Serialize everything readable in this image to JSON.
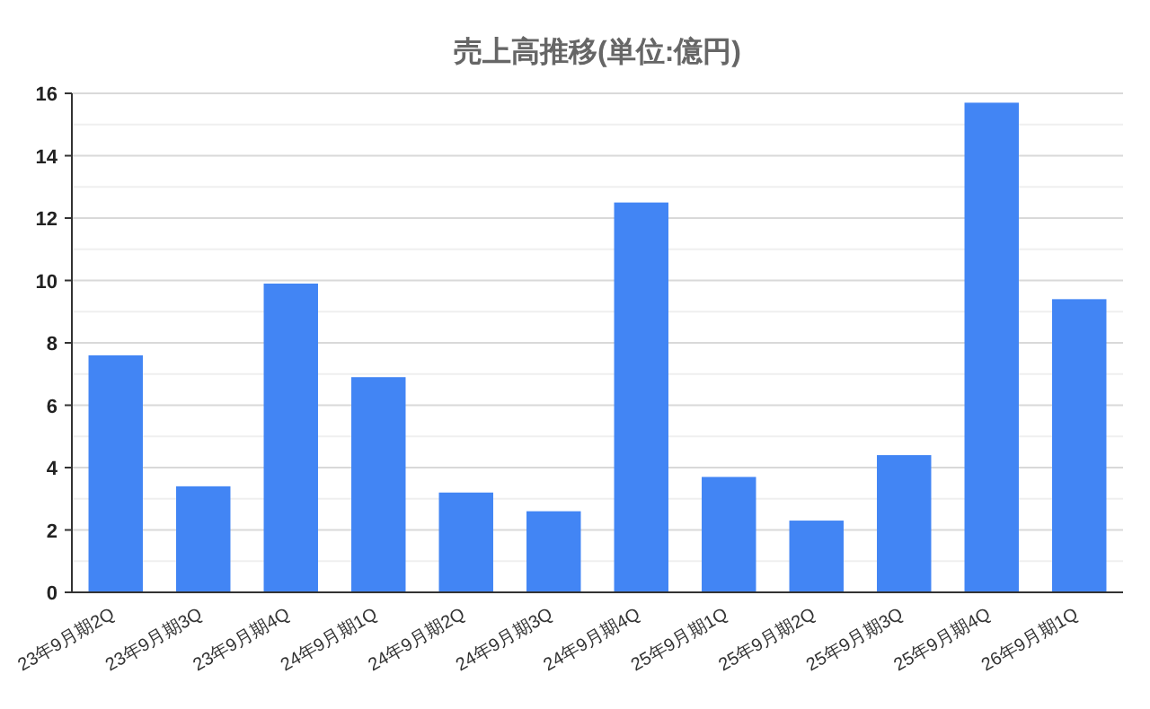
{
  "chart_data": {
    "type": "bar",
    "title": "売上高推移(単位:億円)",
    "categories": [
      "23年9月期2Q",
      "23年9月期3Q",
      "23年9月期4Q",
      "24年9月期1Q",
      "24年9月期2Q",
      "24年9月期3Q",
      "24年9月期4Q",
      "25年9月期1Q",
      "25年9月期2Q",
      "25年9月期3Q",
      "25年9月期4Q",
      "26年9月期1Q"
    ],
    "values": [
      7.6,
      3.4,
      9.9,
      6.9,
      3.2,
      2.6,
      12.5,
      3.7,
      2.3,
      4.4,
      15.7,
      9.4
    ],
    "color": "#4285f4",
    "ylim": [
      0,
      16
    ],
    "yticks": [
      0,
      2,
      4,
      6,
      8,
      10,
      12,
      14,
      16
    ],
    "grid": "y"
  }
}
